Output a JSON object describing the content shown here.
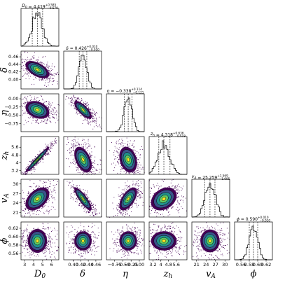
{
  "chart_data": {
    "type": "corner",
    "parameters": [
      {
        "symbol": "D",
        "sub": "0",
        "title": {
          "value": "4.419",
          "plus": "+0.585",
          "minus": "−0.570"
        },
        "median": 4.419,
        "lo": 3.849,
        "hi": 5.004,
        "range": [
          2.6,
          6.8
        ],
        "ticks": [
          3,
          4,
          5,
          6
        ]
      },
      {
        "symbol": "δ",
        "sub": "",
        "title": {
          "value": "0.426",
          "plus": "+0.010",
          "minus": "−0.010"
        },
        "median": 0.426,
        "lo": 0.416,
        "hi": 0.436,
        "range": [
          0.375,
          0.475
        ],
        "ticks": [
          0.4,
          0.42,
          0.44,
          0.46
        ]
      },
      {
        "symbol": "η",
        "sub": "",
        "title": {
          "value": "−0.338",
          "plus": "+0.114",
          "minus": "−0.121"
        },
        "median": -0.338,
        "lo": -0.459,
        "hi": -0.224,
        "range": [
          -1.0,
          0.15
        ],
        "ticks": [
          -0.75,
          -0.5,
          -0.25,
          0.0
        ]
      },
      {
        "symbol": "z",
        "sub": "h",
        "title": {
          "value": "4.318",
          "plus": "+0.636",
          "minus": "−0.518"
        },
        "median": 4.318,
        "lo": 3.8,
        "hi": 4.954,
        "range": [
          2.8,
          6.7
        ],
        "ticks": [
          3.2,
          4.0,
          4.8,
          5.6
        ]
      },
      {
        "symbol": "v",
        "sub": "A",
        "title": {
          "value": "25.259",
          "plus": "+1.569",
          "minus": "−1.605"
        },
        "median": 25.259,
        "lo": 23.654,
        "hi": 26.828,
        "range": [
          19.5,
          31.5
        ],
        "ticks": [
          21,
          24,
          27,
          30
        ]
      },
      {
        "symbol": "ϕ",
        "sub": "",
        "title": {
          "value": "0.590",
          "plus": "+0.010",
          "minus": "−0.010"
        },
        "median": 0.59,
        "lo": 0.58,
        "hi": 0.6,
        "range": [
          0.545,
          0.635
        ],
        "ticks": [
          0.56,
          0.58,
          0.6,
          0.62
        ]
      }
    ],
    "correlations": [
      [
        1,
        -0.55,
        -0.3,
        0.97,
        0.45,
        0
      ],
      [
        -0.55,
        1,
        -0.75,
        -0.45,
        -0.85,
        0
      ],
      [
        -0.3,
        -0.75,
        1,
        -0.25,
        0.6,
        0
      ],
      [
        0.97,
        -0.45,
        -0.25,
        1,
        0.3,
        0
      ],
      [
        0.45,
        -0.85,
        0.6,
        0.3,
        1,
        0
      ],
      [
        0,
        0,
        0,
        0,
        0,
        1
      ]
    ],
    "colors": {
      "outer": "#440154",
      "mid1": "#3b528b",
      "mid2": "#21918c",
      "inner": "#5ec962",
      "core": "#fde725",
      "line": "#000000"
    }
  }
}
